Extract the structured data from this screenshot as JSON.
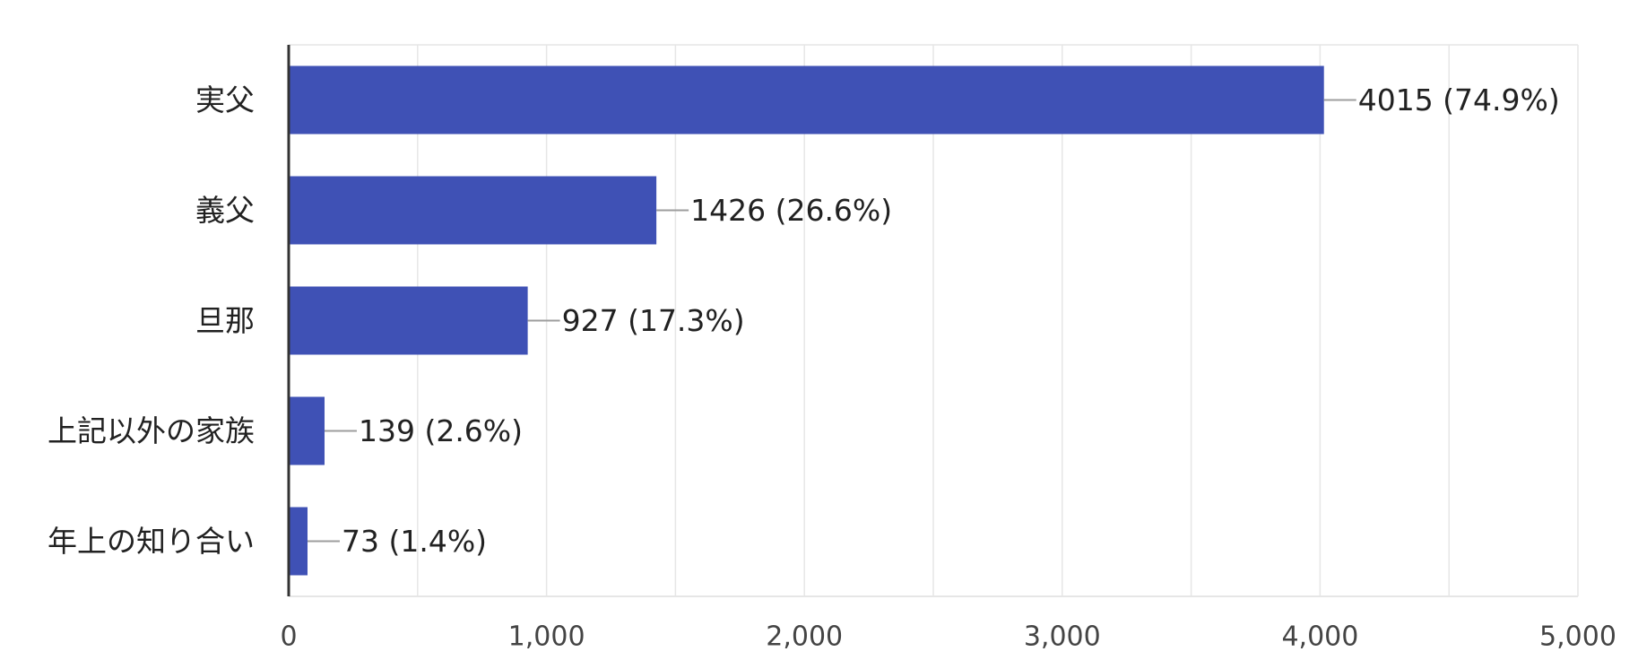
{
  "chart_data": {
    "type": "bar",
    "orientation": "horizontal",
    "categories": [
      "実父",
      "義父",
      "旦那",
      "上記以外の家族",
      "年上の知り合い"
    ],
    "values": [
      4015,
      1426,
      927,
      139,
      73
    ],
    "value_labels": [
      "4015 (74.9%)",
      "1426 (26.6%)",
      "927 (17.3%)",
      "139 (2.6%)",
      "73 (1.4%)"
    ],
    "xlim": [
      0,
      5000
    ],
    "x_ticks": [
      0,
      1000,
      2000,
      3000,
      4000,
      5000
    ],
    "x_tick_labels": [
      "0",
      "1,000",
      "2,000",
      "3,000",
      "4,000",
      "5,000"
    ],
    "minor_grid_step": 500,
    "grid": true,
    "legend": "none",
    "colors": {
      "bar": "#3f51b5",
      "grid": "#e6e6e6",
      "axis": "#333333",
      "leader": "#9e9e9e",
      "text": "#212121",
      "tick_text": "#444444"
    }
  }
}
